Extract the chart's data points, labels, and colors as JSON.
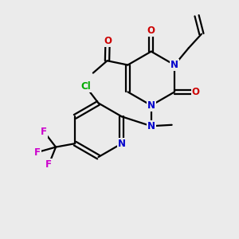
{
  "bg_color": "#ebebeb",
  "bond_color": "#000000",
  "bond_lw": 1.6,
  "atom_colors": {
    "N": "#0000cc",
    "O": "#cc0000",
    "Cl": "#00aa00",
    "F": "#cc00cc",
    "C": "#000000"
  },
  "font_size": 8.5,
  "figsize": [
    3.0,
    3.0
  ],
  "dpi": 100
}
